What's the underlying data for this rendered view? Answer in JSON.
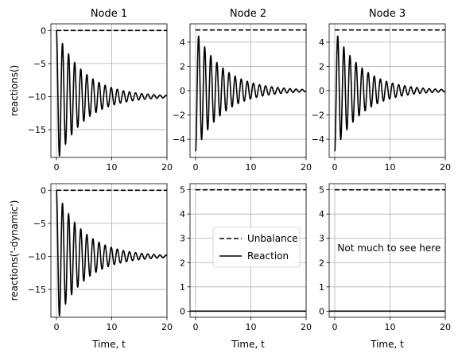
{
  "chart_data": [
    {
      "type": "line",
      "row": 0,
      "col": 0,
      "title": "Node 1",
      "xlabel": "",
      "ylabel": "reactions()",
      "xlim": [
        -1,
        20
      ],
      "ylim": [
        -19.2,
        1.0
      ],
      "xticks": [
        0,
        10,
        20
      ],
      "yticks": [
        0,
        -5,
        -10,
        -15
      ],
      "grid": true,
      "series": [
        {
          "name": "Unbalance",
          "style": "dashed",
          "x": [
            0,
            20
          ],
          "y": [
            0,
            0
          ]
        },
        {
          "name": "Reaction",
          "style": "solid",
          "model": {
            "offset": -10,
            "start": 0,
            "amplitude": 10,
            "omega": 5.7,
            "decay": 0.2,
            "t_end": 20
          }
        }
      ]
    },
    {
      "type": "line",
      "row": 0,
      "col": 1,
      "title": "Node 2",
      "xlabel": "",
      "ylabel": "",
      "xlim": [
        -1,
        20
      ],
      "ylim": [
        -5.5,
        5.5
      ],
      "xticks": [
        0,
        10,
        20
      ],
      "yticks": [
        4,
        2,
        0,
        -2,
        -4
      ],
      "grid": true,
      "series": [
        {
          "name": "Unbalance",
          "style": "dashed",
          "x": [
            0,
            20
          ],
          "y": [
            5,
            5
          ]
        },
        {
          "name": "Reaction",
          "style": "solid",
          "model": {
            "offset": 0,
            "start": -5,
            "amplitude": 5,
            "omega": 5.7,
            "decay": 0.2,
            "t_end": 20
          }
        }
      ]
    },
    {
      "type": "line",
      "row": 0,
      "col": 2,
      "title": "Node 3",
      "xlabel": "",
      "ylabel": "",
      "xlim": [
        -1,
        20
      ],
      "ylim": [
        -5.5,
        5.5
      ],
      "xticks": [
        0,
        10,
        20
      ],
      "yticks": [
        4,
        2,
        0,
        -2,
        -4
      ],
      "grid": true,
      "series": [
        {
          "name": "Unbalance",
          "style": "dashed",
          "x": [
            0,
            20
          ],
          "y": [
            5,
            5
          ]
        },
        {
          "name": "Reaction",
          "style": "solid",
          "model": {
            "offset": 0,
            "start": -5,
            "amplitude": 5,
            "omega": 5.7,
            "decay": 0.2,
            "t_end": 20
          }
        }
      ]
    },
    {
      "type": "line",
      "row": 1,
      "col": 0,
      "title": "",
      "xlabel": "Time, t",
      "ylabel": "reactions('-dynamic')",
      "xlim": [
        -1,
        20
      ],
      "ylim": [
        -19.2,
        1.0
      ],
      "xticks": [
        0,
        10,
        20
      ],
      "yticks": [
        0,
        -5,
        -10,
        -15
      ],
      "grid": true,
      "series": [
        {
          "name": "Unbalance",
          "style": "dashed",
          "x": [
            0,
            20
          ],
          "y": [
            0,
            0
          ]
        },
        {
          "name": "Reaction",
          "style": "solid",
          "model": {
            "offset": -10,
            "start": 0,
            "amplitude": 10,
            "omega": 5.7,
            "decay": 0.2,
            "t_end": 20
          }
        }
      ]
    },
    {
      "type": "line",
      "row": 1,
      "col": 1,
      "title": "",
      "xlabel": "Time, t",
      "ylabel": "",
      "xlim": [
        -1,
        20
      ],
      "ylim": [
        -0.25,
        5.25
      ],
      "xticks": [
        0,
        10,
        20
      ],
      "yticks": [
        0,
        1,
        2,
        3,
        4,
        5
      ],
      "grid": true,
      "legend": {
        "placement": "center-right",
        "entries": [
          {
            "label": "Unbalance",
            "style": "dashed"
          },
          {
            "label": "Reaction",
            "style": "solid"
          }
        ]
      },
      "series": [
        {
          "name": "Unbalance",
          "style": "dashed",
          "x": [
            0,
            20
          ],
          "y": [
            5,
            5
          ]
        },
        {
          "name": "Reaction",
          "style": "solid",
          "x": [
            -1,
            20
          ],
          "y": [
            0,
            0
          ]
        }
      ]
    },
    {
      "type": "line",
      "row": 1,
      "col": 2,
      "title": "",
      "xlabel": "Time, t",
      "ylabel": "",
      "xlim": [
        -1,
        20
      ],
      "ylim": [
        -0.25,
        5.25
      ],
      "xticks": [
        0,
        10,
        20
      ],
      "yticks": [
        0,
        1,
        2,
        3,
        4,
        5
      ],
      "grid": true,
      "annotation": {
        "text": "Not much to see here",
        "x": 0.5,
        "y": 2.6
      },
      "series": [
        {
          "name": "Unbalance",
          "style": "dashed",
          "x": [
            0,
            20
          ],
          "y": [
            5,
            5
          ]
        },
        {
          "name": "Reaction",
          "style": "solid",
          "x": [
            -1,
            20
          ],
          "y": [
            0,
            0
          ]
        }
      ]
    }
  ]
}
